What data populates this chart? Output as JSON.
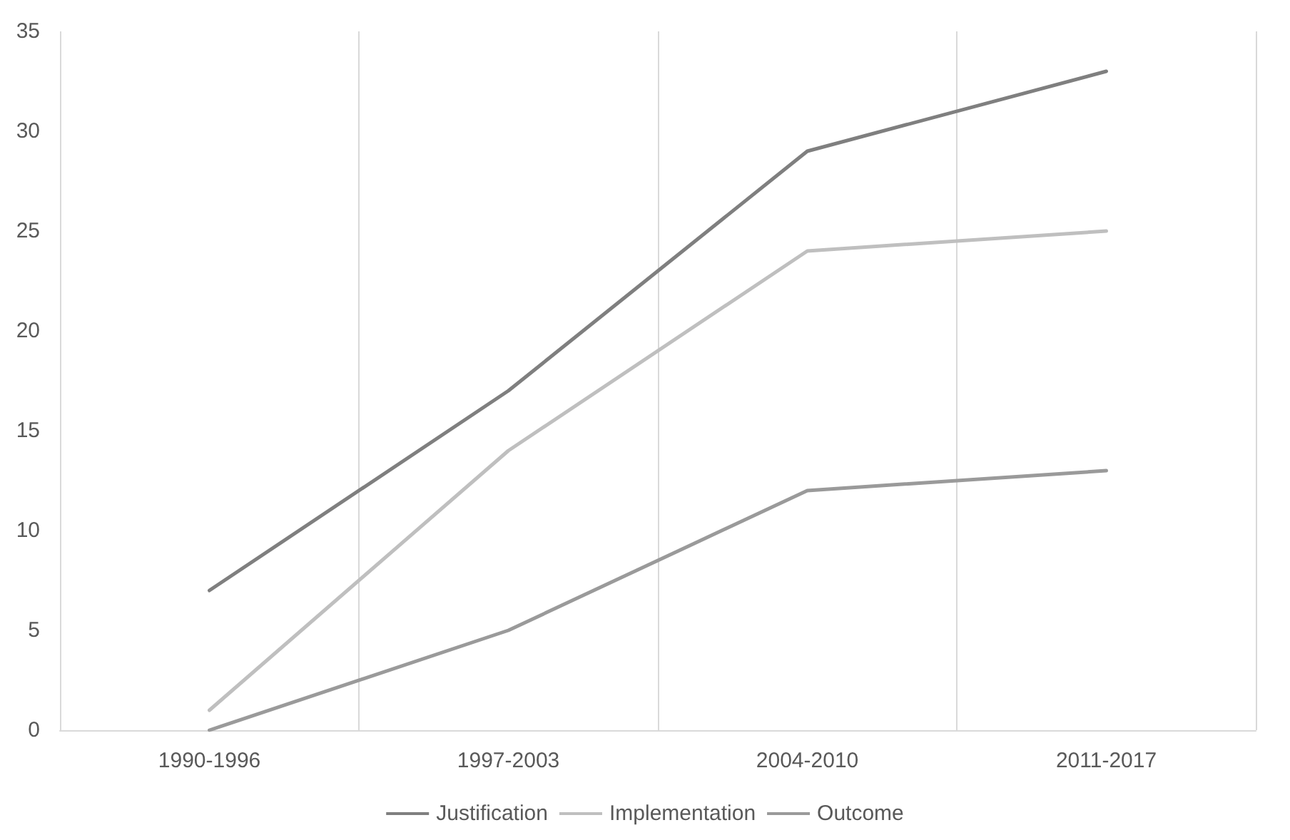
{
  "chart_data": {
    "type": "line",
    "categories": [
      "1990-1996",
      "1997-2003",
      "2004-2010",
      "2011-2017"
    ],
    "series": [
      {
        "name": "Justification",
        "color": "#7f7f7f",
        "values": [
          7,
          17,
          29,
          33
        ]
      },
      {
        "name": "Implementation",
        "color": "#bfbfbf",
        "values": [
          1,
          14,
          24,
          25
        ]
      },
      {
        "name": "Outcome",
        "color": "#9a9a9a",
        "values": [
          0,
          5,
          12,
          13
        ]
      }
    ],
    "ylim": [
      0,
      35
    ],
    "yticks": [
      0,
      5,
      10,
      15,
      20,
      25,
      30,
      35
    ],
    "grid": "x",
    "legend": "bottom",
    "marker": "none",
    "line_style": "solid"
  }
}
